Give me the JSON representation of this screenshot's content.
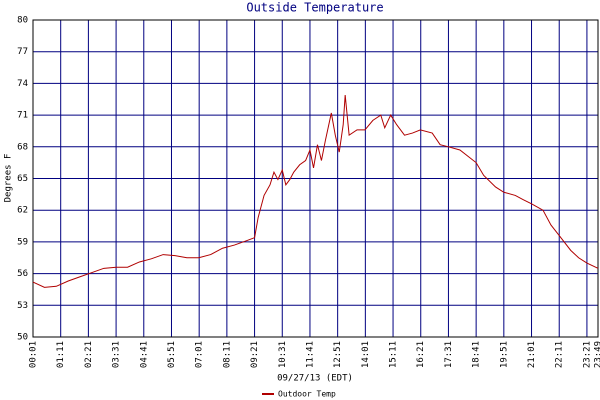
{
  "chart_data": {
    "type": "line",
    "title": "Outside Temperature",
    "x_label": "09/27/13 (EDT)",
    "y_label": "Degrees F",
    "x": [
      "00:01",
      "00:30",
      "01:00",
      "01:30",
      "02:00",
      "02:30",
      "03:00",
      "03:31",
      "04:00",
      "04:30",
      "05:00",
      "05:30",
      "06:00",
      "06:30",
      "07:00",
      "07:30",
      "08:00",
      "08:30",
      "09:00",
      "09:21",
      "09:30",
      "09:45",
      "10:00",
      "10:10",
      "10:20",
      "10:31",
      "10:40",
      "10:50",
      "11:00",
      "11:15",
      "11:30",
      "11:41",
      "11:50",
      "12:00",
      "12:10",
      "12:20",
      "12:35",
      "12:45",
      "12:55",
      "13:05",
      "13:10",
      "13:20",
      "13:40",
      "14:00",
      "14:20",
      "14:40",
      "14:50",
      "15:05",
      "15:20",
      "15:40",
      "16:00",
      "16:20",
      "16:50",
      "17:10",
      "17:31",
      "18:00",
      "18:41",
      "19:00",
      "19:30",
      "19:51",
      "20:20",
      "20:40",
      "21:01",
      "21:30",
      "21:50",
      "22:11",
      "22:40",
      "23:00",
      "23:21",
      "23:49"
    ],
    "series": [
      {
        "name": "Outdoor Temp",
        "color": "#b00000",
        "values": [
          55.2,
          54.7,
          54.8,
          55.3,
          55.7,
          56.1,
          56.5,
          56.6,
          56.6,
          57.1,
          57.4,
          57.8,
          57.7,
          57.5,
          57.5,
          57.8,
          58.4,
          58.7,
          59.1,
          59.4,
          61.3,
          63.4,
          64.4,
          65.6,
          64.9,
          65.8,
          64.4,
          64.9,
          65.6,
          66.3,
          66.7,
          67.7,
          66.0,
          68.2,
          66.7,
          68.6,
          71.2,
          69.1,
          67.5,
          70.1,
          72.9,
          69.1,
          69.6,
          69.6,
          70.5,
          71.0,
          69.8,
          71.0,
          70.1,
          69.1,
          69.3,
          69.6,
          69.3,
          68.2,
          68.0,
          67.7,
          66.5,
          65.3,
          64.2,
          63.7,
          63.4,
          63.0,
          62.6,
          62.0,
          60.6,
          59.6,
          58.2,
          57.5,
          57.0,
          56.5
        ]
      }
    ],
    "xlim": [
      "00:01",
      "23:49"
    ],
    "xticks": [
      "00:01",
      "01:11",
      "02:21",
      "03:31",
      "04:41",
      "05:51",
      "07:01",
      "08:11",
      "09:21",
      "10:31",
      "11:41",
      "12:51",
      "14:01",
      "15:11",
      "16:21",
      "17:31",
      "18:41",
      "19:51",
      "21:01",
      "22:11",
      "23:21",
      "23:49"
    ],
    "ylim": [
      50,
      80
    ],
    "yticks": [
      50,
      53,
      56,
      59,
      62,
      65,
      68,
      71,
      74,
      77,
      80
    ],
    "grid": true,
    "grid_color": "#000080",
    "legend": "bottom"
  }
}
